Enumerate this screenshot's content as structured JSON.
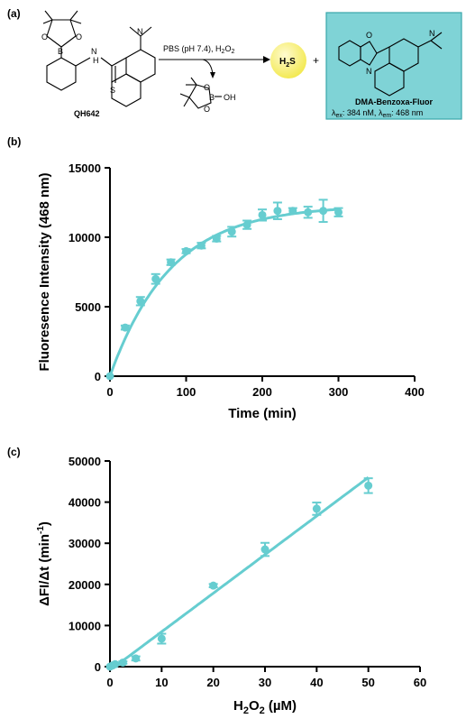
{
  "panels": {
    "a": "(a)",
    "b": "(b)",
    "c": "(c)"
  },
  "scheme": {
    "reactant_name": "QH642",
    "condition": "PBS (pH 7.4), H",
    "condition_sub": "2",
    "condition_tail": "O",
    "condition_sub2": "2",
    "byproduct_atoms": {
      "b": "B",
      "oh": "OH",
      "o": "O"
    },
    "h2s_main": "H",
    "h2s_sub": "2",
    "h2s_tail": "S",
    "plus": "+",
    "reactant_atoms": {
      "b": "B",
      "o": "O",
      "n": "N",
      "h": "H",
      "s": "S"
    },
    "product_name": "DMA-Benzoxa-Fluor",
    "product_atoms": {
      "o": "O",
      "n": "N"
    },
    "lambda_ex_label": "λ",
    "lambda_ex_sub": "ex",
    "lambda_ex_val": ": 384 nM, ",
    "lambda_em_label": "λ",
    "lambda_em_sub": "em",
    "lambda_em_val": ": 468 nm",
    "colors": {
      "h2s_ball": "#f2e84a",
      "product_box": "#7fd3d6",
      "series": "#66cdd0"
    }
  },
  "chart_data": [
    {
      "type": "scatter",
      "panel": "(b)",
      "xlabel": "Time (min)",
      "ylabel": "Fluoresence Intensity (468 nm)",
      "xlim": [
        0,
        400
      ],
      "ylim": [
        0,
        15000
      ],
      "xticks": [
        "0",
        "100",
        "200",
        "300",
        "400"
      ],
      "yticks": [
        "0",
        "5000",
        "10000",
        "15000"
      ],
      "x": [
        0,
        20,
        40,
        60,
        80,
        100,
        120,
        140,
        160,
        180,
        200,
        220,
        240,
        260,
        280,
        300
      ],
      "y": [
        0,
        3500,
        5400,
        7000,
        8200,
        9000,
        9400,
        9900,
        10400,
        10900,
        11600,
        11900,
        11900,
        11800,
        11900,
        11800
      ],
      "err": [
        0,
        150,
        300,
        350,
        200,
        150,
        200,
        200,
        350,
        300,
        400,
        600,
        200,
        400,
        800,
        300
      ],
      "fit": "exponential",
      "fit_params": {
        "ymax": 12300,
        "k": 0.0125
      },
      "grid": false,
      "color": "#66cdd0"
    },
    {
      "type": "scatter",
      "panel": "(c)",
      "xlabel_main": "H",
      "xlabel_sub": "2",
      "xlabel_main2": "O",
      "xlabel_sub2": "2",
      "xlabel_unit": " (µM)",
      "ylabel_main": "ΔFI/Δt (min",
      "ylabel_sup": "-1",
      "ylabel_tail": ")",
      "xlim": [
        0,
        60
      ],
      "ylim": [
        0,
        50000
      ],
      "xticks": [
        "0",
        "10",
        "20",
        "30",
        "40",
        "50",
        "60"
      ],
      "yticks": [
        "0",
        "10000",
        "20000",
        "30000",
        "40000",
        "50000"
      ],
      "x": [
        0,
        0.5,
        1,
        2.5,
        5,
        10,
        20,
        30,
        40,
        50
      ],
      "y": [
        0,
        300,
        600,
        1000,
        2000,
        6800,
        19700,
        28500,
        38400,
        44000
      ],
      "err": [
        0,
        200,
        200,
        300,
        500,
        1200,
        400,
        1600,
        1500,
        1800
      ],
      "fit": "linear",
      "fit_params": {
        "slope": 938,
        "intercept": -900
      },
      "grid": false,
      "color": "#66cdd0"
    }
  ]
}
